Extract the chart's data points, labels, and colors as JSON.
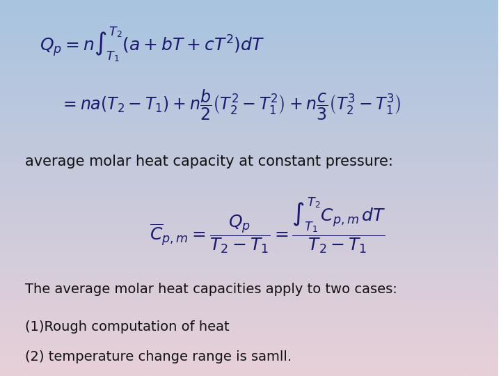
{
  "background_top_color": "#a8c4e0",
  "background_bottom_color": "#e8d0d8",
  "eq1": "Q_p = n\\int_{T_1}^{T_2}\\left(a + bT + cT^2\\right)dT",
  "eq2": "= na\\left(T_2 - T_1\\right) + n\\frac{b}{2}\\left(T_2^2 - T_1^2\\right) + n\\frac{c}{3}\\left(T_2^3 - T_1^3\\right)",
  "label1": "average molar heat capacity at constant pressure:",
  "eq3": "\\overline{C}_{p,m} = \\frac{Q_p}{T_2 - T_1} = \\frac{\\int_{T_1}^{T_2}C_{p,m}dT}{T_2 - T_1}",
  "text1": "The average molar heat capacities apply to two cases:",
  "text2": "(1)Rough computation of heat",
  "text3": "(2) temperature change range is samll.",
  "formula_color": "#1a1a6e",
  "text_color": "#111111",
  "label_color": "#111111"
}
